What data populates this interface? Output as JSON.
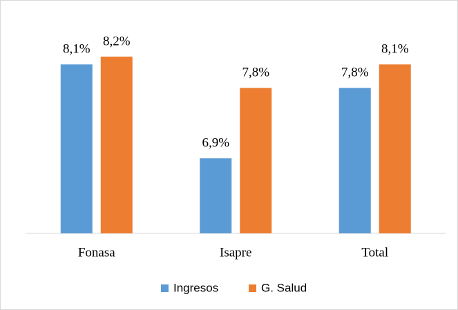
{
  "chart_data": {
    "type": "bar",
    "categories": [
      "Fonasa",
      "Isapre",
      "Total"
    ],
    "series": [
      {
        "name": "Ingresos",
        "color": "#5b9bd5",
        "values": [
          8.1,
          6.9,
          7.8
        ],
        "value_labels": [
          "8,1%",
          "6,9%",
          "7,8%"
        ]
      },
      {
        "name": "G. Salud",
        "color": "#ed7d31",
        "values": [
          8.2,
          7.8,
          8.1
        ],
        "value_labels": [
          "8,2%",
          "7,8%",
          "8,1%"
        ]
      }
    ],
    "ylim": [
      5.94,
      8.5
    ],
    "legend": "bottom"
  }
}
